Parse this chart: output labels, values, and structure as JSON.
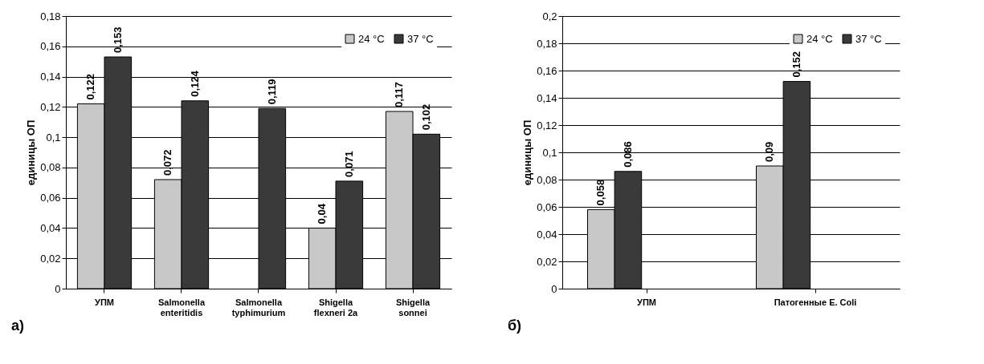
{
  "chart_data": [
    {
      "type": "bar",
      "ylabel": "единицы ОП",
      "annotations": [
        "а)"
      ],
      "categories": [
        "УПМ",
        "Salmonella enteritidis",
        "Salmonella typhimurium",
        "Shigella flexneri 2a",
        "Shigella sonnei"
      ],
      "series": [
        {
          "name": "24 °C",
          "color": "#c8c8c8",
          "values": [
            0.122,
            0.072,
            null,
            0.04,
            0.117
          ],
          "value_labels": [
            "0,122",
            "0,072",
            null,
            "0,04",
            "0,117"
          ]
        },
        {
          "name": "37 °C",
          "color": "#3a3a3a",
          "values": [
            0.153,
            0.124,
            0.119,
            0.071,
            0.102
          ],
          "value_labels": [
            "0,153",
            "0,124",
            "0,119",
            "0,071",
            "0,102"
          ]
        }
      ],
      "ylim": [
        0,
        0.18
      ],
      "yticks": [
        0,
        {
          "value": 0.02,
          "label": "0,02"
        },
        {
          "value": 0.04,
          "label": "0,04"
        },
        {
          "value": 0.06,
          "label": "0,06"
        },
        {
          "value": 0.08,
          "label": "0,08"
        },
        {
          "value": 0.1,
          "label": "0,1"
        },
        {
          "value": 0.12,
          "label": "0,12"
        },
        {
          "value": 0.14,
          "label": "0,14"
        },
        {
          "value": 0.16,
          "label": "0,16"
        },
        {
          "value": 0.18,
          "label": "0,18"
        }
      ],
      "grid": "y",
      "legend": "top right"
    },
    {
      "type": "bar",
      "ylabel": "единицы ОП",
      "annotations": [
        "б)"
      ],
      "categories": [
        "УПМ",
        "Патогенные E. Coli"
      ],
      "series": [
        {
          "name": "24 °C",
          "color": "#c8c8c8",
          "values": [
            0.058,
            0.09
          ],
          "value_labels": [
            "0,058",
            "0,09"
          ]
        },
        {
          "name": "37 °C",
          "color": "#3a3a3a",
          "values": [
            0.086,
            0.152
          ],
          "value_labels": [
            "0,086",
            "0,152"
          ]
        }
      ],
      "ylim": [
        0,
        0.2
      ],
      "yticks": [
        0,
        {
          "value": 0.02,
          "label": "0,02"
        },
        {
          "value": 0.04,
          "label": "0,04"
        },
        {
          "value": 0.06,
          "label": "0,06"
        },
        {
          "value": 0.08,
          "label": "0,08"
        },
        {
          "value": 0.1,
          "label": "0,1"
        },
        {
          "value": 0.12,
          "label": "0,12"
        },
        {
          "value": 0.14,
          "label": "0,14"
        },
        {
          "value": 0.16,
          "label": "0,16"
        },
        {
          "value": 0.18,
          "label": "0,18"
        },
        {
          "value": 0.2,
          "label": "0,2"
        }
      ],
      "grid": "y",
      "legend": "top right"
    }
  ]
}
